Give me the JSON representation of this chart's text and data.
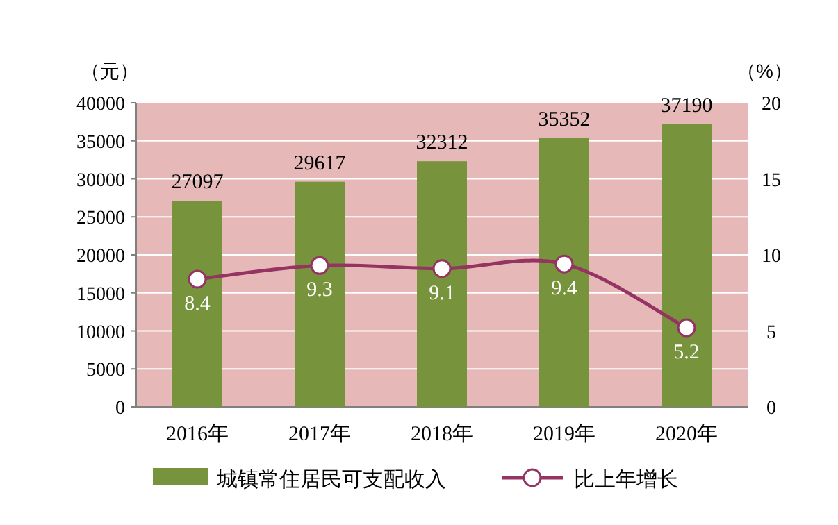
{
  "chart_data": {
    "type": "bar",
    "categories": [
      "2016年",
      "2017年",
      "2018年",
      "2019年",
      "2020年"
    ],
    "series": [
      {
        "name": "城镇常住居民可支配收入",
        "color": "#77933c",
        "values": [
          27097,
          29617,
          32312,
          35352,
          37190
        ]
      },
      {
        "name": "比上年增长",
        "type": "line",
        "axis": "y2",
        "color": "#953462",
        "marker": "circle",
        "values": [
          8.4,
          9.3,
          9.1,
          9.4,
          5.2
        ]
      }
    ],
    "ylabel": "（元）",
    "y2label": "（%）",
    "ylim": [
      0,
      40000
    ],
    "yticks": [
      0,
      5000,
      10000,
      15000,
      20000,
      25000,
      30000,
      35000,
      40000
    ],
    "y2lim": [
      0,
      20
    ],
    "y2ticks": [
      0,
      5,
      10,
      15,
      20
    ],
    "data_labels": true,
    "legend": "bottom",
    "grid": "y"
  }
}
